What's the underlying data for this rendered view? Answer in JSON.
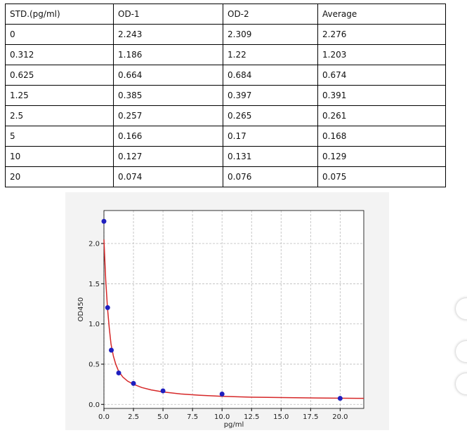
{
  "table": {
    "headers": [
      "STD.(pg/ml)",
      "OD-1",
      "OD-2",
      "Average"
    ],
    "rows": [
      [
        "0",
        "2.243",
        "2.309",
        "2.276"
      ],
      [
        "0.312",
        "1.186",
        "1.22",
        "1.203"
      ],
      [
        "0.625",
        "0.664",
        "0.684",
        "0.674"
      ],
      [
        "1.25",
        "0.385",
        "0.397",
        "0.391"
      ],
      [
        "2.5",
        "0.257",
        "0.265",
        "0.261"
      ],
      [
        "5",
        "0.166",
        "0.17",
        "0.168"
      ],
      [
        "10",
        "0.127",
        "0.131",
        "0.129"
      ],
      [
        "20",
        "0.074",
        "0.076",
        "0.075"
      ]
    ]
  },
  "chart_data": {
    "type": "scatter",
    "xlabel": "pg/ml",
    "ylabel": "OD450",
    "series": [
      {
        "color": "#1f1fbf",
        "x": [
          0,
          0.312,
          0.625,
          1.25,
          2.5,
          5,
          10,
          20
        ],
        "values": [
          2.276,
          1.203,
          0.674,
          0.391,
          0.261,
          0.168,
          0.129,
          0.075
        ]
      }
    ],
    "curve": {
      "color": "#d62728",
      "x": [
        0,
        0.15,
        0.3,
        0.45,
        0.6,
        0.8,
        1,
        1.25,
        1.6,
        2,
        2.5,
        3.2,
        4,
        5,
        6.5,
        8,
        10,
        12.5,
        15,
        18,
        22
      ],
      "values": [
        2.05,
        1.55,
        1.2,
        0.95,
        0.75,
        0.6,
        0.5,
        0.41,
        0.34,
        0.29,
        0.25,
        0.21,
        0.18,
        0.155,
        0.13,
        0.115,
        0.1,
        0.09,
        0.085,
        0.08,
        0.075
      ]
    },
    "xlim": [
      0,
      22
    ],
    "ylim": [
      -0.05,
      2.41
    ],
    "xticks": [
      {
        "value": 0,
        "label": "0.0"
      },
      2.5,
      {
        "value": 5,
        "label": "5.0"
      },
      7.5,
      {
        "value": 10,
        "label": "10.0"
      },
      12.5,
      {
        "value": 15,
        "label": "15.0"
      },
      17.5,
      {
        "value": 20,
        "label": "20.0"
      }
    ],
    "yticks": [
      {
        "value": 0,
        "label": "0.0"
      },
      0.5,
      {
        "value": 1,
        "label": "1.0"
      },
      1.5,
      {
        "value": 2,
        "label": "2.0"
      }
    ],
    "grid": true
  }
}
